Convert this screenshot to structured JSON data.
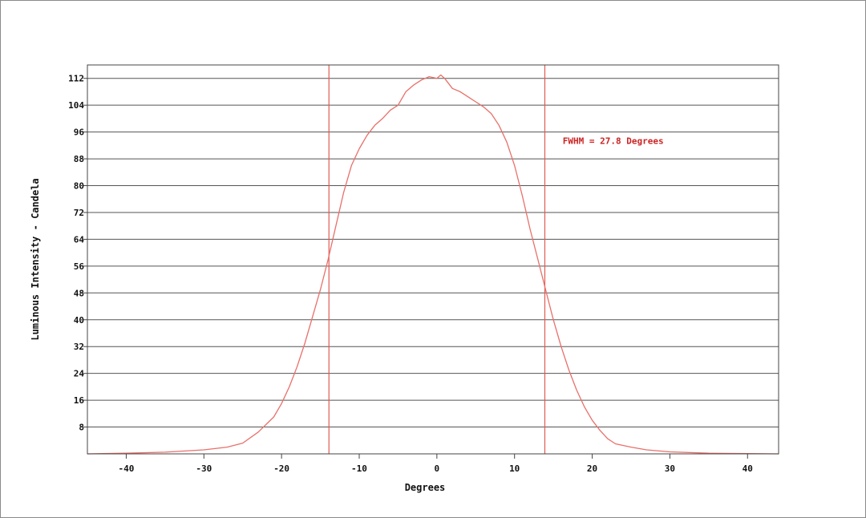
{
  "chart_data": {
    "type": "line",
    "title": "",
    "xlabel": "Degrees",
    "ylabel": "Luminous Intensity - Candela",
    "xlim": [
      -45,
      44
    ],
    "ylim": [
      0,
      116
    ],
    "xticks": [
      -40,
      -30,
      -20,
      -10,
      0,
      10,
      20,
      30,
      40
    ],
    "yticks": [
      8,
      16,
      24,
      32,
      40,
      48,
      56,
      64,
      72,
      80,
      88,
      96,
      104,
      112
    ],
    "grid": "horizontal",
    "colors": {
      "line": "#e8706a",
      "marker": "#e05a55",
      "annotation": "#cc2222",
      "grid": "#555555"
    },
    "series": [
      {
        "x": [
          -45,
          -40,
          -35,
          -30,
          -27,
          -25,
          -23,
          -21,
          -20,
          -19,
          -18,
          -17,
          -16,
          -15,
          -14,
          -13,
          -12,
          -11,
          -10,
          -9,
          -8,
          -7,
          -6,
          -5,
          -4,
          -3,
          -2,
          -1,
          0,
          0.5,
          1,
          2,
          3,
          4,
          5,
          6,
          7,
          8,
          9,
          10,
          11,
          12,
          13,
          14,
          15,
          16,
          17,
          18,
          19,
          20,
          21,
          22,
          23,
          25,
          27,
          30,
          35,
          40,
          44
        ],
        "y": [
          0,
          0.2,
          0.5,
          1.2,
          2.0,
          3.2,
          6.5,
          11,
          15,
          20,
          26,
          33,
          41,
          49,
          58,
          68,
          78,
          86,
          91,
          95,
          98,
          100,
          102.5,
          104,
          108,
          110,
          111.5,
          112.5,
          112,
          113,
          112,
          109,
          108,
          106.5,
          105,
          103.5,
          101.5,
          98,
          93,
          86,
          77,
          67,
          58,
          49,
          40,
          32,
          25,
          19,
          14,
          10,
          7,
          4.5,
          3.0,
          2.0,
          1.2,
          0.6,
          0.2,
          0.1,
          0
        ]
      }
    ],
    "markers": [
      {
        "x": -13.9
      },
      {
        "x": 13.9
      }
    ],
    "annotation": "FWHM = 27.8 Degrees"
  }
}
